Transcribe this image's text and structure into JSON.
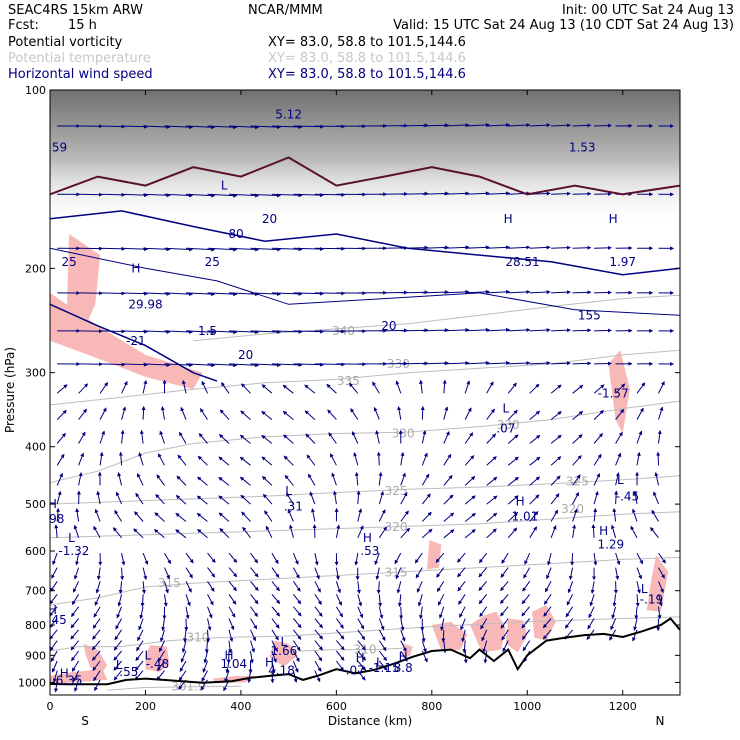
{
  "header": {
    "model": "SEAC4RS 15km ARW",
    "org": "NCAR/MMM",
    "init": "Init: 00 UTC Sat 24 Aug 13",
    "fcst_label": "Fcst:",
    "fcst_value": "15 h",
    "valid": "Valid: 15 UTC Sat 24 Aug 13 (10 CDT Sat 24 Aug 13)",
    "fields": [
      {
        "name": "Potential vorticity",
        "xy": "XY=  83.0, 58.8 to 101.5,144.6",
        "color": "#000000"
      },
      {
        "name": "Potential temperature",
        "xy": "XY=  83.0, 58.8 to 101.5,144.6",
        "color": "#c8c8c8"
      },
      {
        "name": "Horizontal wind speed",
        "xy": "XY=  83.0, 58.8 to 101.5,144.6",
        "color": "#000080"
      }
    ]
  },
  "chart_data": {
    "type": "cross-section",
    "xlabel": "Distance (km)",
    "ylabel": "Pressure (hPa)",
    "xlim": [
      0,
      1320
    ],
    "ylim": [
      1050,
      100
    ],
    "x_ticks": [
      0,
      200,
      400,
      600,
      800,
      1000,
      1200
    ],
    "y_ticks": [
      100,
      200,
      300,
      400,
      500,
      600,
      700,
      800,
      900,
      1000
    ],
    "x_end_labels": {
      "left": "S",
      "right": "N"
    },
    "terrain_pressure": [
      {
        "x": 0,
        "p": 1006
      },
      {
        "x": 40,
        "p": 1007
      },
      {
        "x": 120,
        "p": 1007
      },
      {
        "x": 160,
        "p": 990
      },
      {
        "x": 200,
        "p": 985
      },
      {
        "x": 260,
        "p": 993
      },
      {
        "x": 320,
        "p": 1001
      },
      {
        "x": 380,
        "p": 995
      },
      {
        "x": 420,
        "p": 982
      },
      {
        "x": 460,
        "p": 975
      },
      {
        "x": 500,
        "p": 968
      },
      {
        "x": 530,
        "p": 990
      },
      {
        "x": 560,
        "p": 975
      },
      {
        "x": 600,
        "p": 950
      },
      {
        "x": 640,
        "p": 965
      },
      {
        "x": 680,
        "p": 952
      },
      {
        "x": 720,
        "p": 930
      },
      {
        "x": 760,
        "p": 905
      },
      {
        "x": 800,
        "p": 885
      },
      {
        "x": 840,
        "p": 880
      },
      {
        "x": 880,
        "p": 910
      },
      {
        "x": 900,
        "p": 880
      },
      {
        "x": 930,
        "p": 920
      },
      {
        "x": 960,
        "p": 880
      },
      {
        "x": 980,
        "p": 950
      },
      {
        "x": 1000,
        "p": 900
      },
      {
        "x": 1040,
        "p": 850
      },
      {
        "x": 1080,
        "p": 840
      },
      {
        "x": 1120,
        "p": 832
      },
      {
        "x": 1160,
        "p": 828
      },
      {
        "x": 1200,
        "p": 838
      },
      {
        "x": 1240,
        "p": 820
      },
      {
        "x": 1280,
        "p": 800
      },
      {
        "x": 1300,
        "p": 780
      },
      {
        "x": 1320,
        "p": 815
      }
    ],
    "theta_contours": [
      {
        "label": "301.9",
        "lx": 290,
        "lp": 1015,
        "points": [
          [
            120,
            1030
          ],
          [
            200,
            1020
          ],
          [
            300,
            1017
          ],
          [
            400,
            1015
          ]
        ]
      },
      {
        "label": "310",
        "lx": 310,
        "lp": 840,
        "points": [
          [
            0,
            885
          ],
          [
            60,
            870
          ],
          [
            150,
            870
          ],
          [
            250,
            850
          ],
          [
            350,
            840
          ],
          [
            500,
            835
          ],
          [
            650,
            820
          ],
          [
            800,
            805
          ],
          [
            1000,
            790
          ],
          [
            1200,
            780
          ],
          [
            1320,
            775
          ]
        ]
      },
      {
        "label": "310",
        "lx": 660,
        "lp": 880,
        "points": [
          [
            520,
            885
          ],
          [
            600,
            880
          ],
          [
            680,
            880
          ],
          [
            740,
            875
          ]
        ]
      },
      {
        "label": "315",
        "lx": 250,
        "lp": 680,
        "points": [
          [
            0,
            740
          ],
          [
            100,
            720
          ],
          [
            200,
            690
          ],
          [
            300,
            680
          ],
          [
            450,
            670
          ],
          [
            600,
            660
          ],
          [
            750,
            650
          ],
          [
            900,
            640
          ],
          [
            1050,
            630
          ],
          [
            1200,
            620
          ],
          [
            1320,
            615
          ]
        ]
      },
      {
        "label": "315",
        "lx": 725,
        "lp": 652,
        "points": []
      },
      {
        "label": "320",
        "lx": 725,
        "lp": 547,
        "points": [
          [
            0,
            570
          ],
          [
            150,
            565
          ],
          [
            300,
            560
          ],
          [
            450,
            555
          ],
          [
            600,
            550
          ],
          [
            750,
            545
          ],
          [
            900,
            540
          ],
          [
            1050,
            530
          ],
          [
            1200,
            520
          ],
          [
            1320,
            515
          ]
        ]
      },
      {
        "label": "320",
        "lx": 1095,
        "lp": 510,
        "points": []
      },
      {
        "label": "325",
        "lx": 725,
        "lp": 475,
        "points": [
          [
            0,
            500
          ],
          [
            150,
            495
          ],
          [
            300,
            490
          ],
          [
            450,
            485
          ],
          [
            600,
            478
          ],
          [
            750,
            472
          ],
          [
            900,
            468
          ],
          [
            1050,
            462
          ],
          [
            1200,
            455
          ],
          [
            1320,
            448
          ]
        ]
      },
      {
        "label": "325",
        "lx": 1105,
        "lp": 458,
        "points": []
      },
      {
        "label": "330",
        "lx": 740,
        "lp": 380,
        "points": [
          [
            0,
            460
          ],
          [
            100,
            440
          ],
          [
            200,
            410
          ],
          [
            300,
            395
          ],
          [
            450,
            385
          ],
          [
            600,
            380
          ],
          [
            750,
            378
          ],
          [
            900,
            370
          ],
          [
            1050,
            360
          ],
          [
            1200,
            345
          ],
          [
            1320,
            335
          ]
        ]
      },
      {
        "label": "330",
        "lx": 960,
        "lp": 368,
        "points": []
      },
      {
        "label": "335",
        "lx": 625,
        "lp": 310,
        "points": [
          [
            0,
            340
          ],
          [
            150,
            330
          ],
          [
            300,
            320
          ],
          [
            450,
            312
          ],
          [
            600,
            308
          ],
          [
            750,
            300
          ],
          [
            900,
            295
          ],
          [
            1050,
            290
          ],
          [
            1200,
            280
          ],
          [
            1320,
            275
          ]
        ]
      },
      {
        "label": "330",
        "lx": 730,
        "lp": 290,
        "points": []
      },
      {
        "label": "340",
        "lx": 615,
        "lp": 255,
        "points": [
          [
            300,
            265
          ],
          [
            450,
            258
          ],
          [
            600,
            253
          ],
          [
            750,
            248
          ],
          [
            900,
            240
          ],
          [
            1050,
            232
          ],
          [
            1200,
            225
          ],
          [
            1320,
            222
          ]
        ]
      }
    ],
    "pv_labels": [
      {
        "text": "H",
        "x": 180,
        "p": 200,
        "color": "#000080"
      },
      {
        "text": "29.98",
        "x": 200,
        "p": 230,
        "color": "#000080"
      },
      {
        "text": "L",
        "x": 365,
        "p": 145,
        "color": "#000080"
      },
      {
        "text": "80",
        "x": 390,
        "p": 175,
        "color": "#000080"
      },
      {
        "text": "20",
        "x": 460,
        "p": 165,
        "color": "#000080"
      },
      {
        "text": "25",
        "x": 40,
        "p": 195,
        "color": "#000080"
      },
      {
        "text": "25",
        "x": 340,
        "p": 195,
        "color": "#000080"
      },
      {
        "text": "1.5",
        "x": 330,
        "p": 255,
        "color": "#000080"
      },
      {
        "text": "20",
        "x": 410,
        "p": 280,
        "color": "#000080"
      },
      {
        "text": "-21",
        "x": 180,
        "p": 265,
        "color": "#000080"
      },
      {
        "text": "59",
        "x": 20,
        "p": 125,
        "color": "#000080"
      },
      {
        "text": "5.12",
        "x": 500,
        "p": 110,
        "color": "#000080"
      },
      {
        "text": "20",
        "x": 710,
        "p": 250,
        "color": "#000080"
      },
      {
        "text": "H",
        "x": 960,
        "p": 165,
        "color": "#000080"
      },
      {
        "text": "28.51",
        "x": 990,
        "p": 195,
        "color": "#000080"
      },
      {
        "text": "1.53",
        "x": 1115,
        "p": 125,
        "color": "#000080"
      },
      {
        "text": "H",
        "x": 1180,
        "p": 165,
        "color": "#000080"
      },
      {
        "text": "1.97",
        "x": 1200,
        "p": 195,
        "color": "#000080"
      },
      {
        "text": "155",
        "x": 1130,
        "p": 240,
        "color": "#000080"
      },
      {
        "text": "-1.57",
        "x": 1180,
        "p": 325,
        "color": "#000080"
      },
      {
        "text": "L",
        "x": 955,
        "p": 345,
        "color": "#000080"
      },
      {
        "text": ".07",
        "x": 955,
        "p": 373,
        "color": "#000080"
      },
      {
        "text": "L",
        "x": 1195,
        "p": 455,
        "color": "#000080"
      },
      {
        "text": "-.45",
        "x": 1210,
        "p": 485,
        "color": "#000080"
      },
      {
        "text": "H",
        "x": 985,
        "p": 495,
        "color": "#000080"
      },
      {
        "text": "1.01",
        "x": 995,
        "p": 525,
        "color": "#000080"
      },
      {
        "text": "L",
        "x": 500,
        "p": 475,
        "color": "#000080"
      },
      {
        "text": ".31",
        "x": 510,
        "p": 505,
        "color": "#000080"
      },
      {
        "text": "H",
        "x": 5,
        "p": 500,
        "color": "#000080"
      },
      {
        "text": ".98",
        "x": 10,
        "p": 530,
        "color": "#000080"
      },
      {
        "text": "L",
        "x": 45,
        "p": 570,
        "color": "#000080"
      },
      {
        "text": "-1.32",
        "x": 50,
        "p": 600,
        "color": "#000080"
      },
      {
        "text": "H",
        "x": 665,
        "p": 570,
        "color": "#000080"
      },
      {
        "text": ".53",
        "x": 670,
        "p": 600,
        "color": "#000080"
      },
      {
        "text": "H",
        "x": 1160,
        "p": 555,
        "color": "#000080"
      },
      {
        "text": "1.29",
        "x": 1175,
        "p": 585,
        "color": "#000080"
      },
      {
        "text": "L",
        "x": 1245,
        "p": 695,
        "color": "#000080"
      },
      {
        "text": "-.19",
        "x": 1260,
        "p": 725,
        "color": "#000080"
      },
      {
        "text": "H",
        "x": 5,
        "p": 755,
        "color": "#000080"
      },
      {
        "text": ".45",
        "x": 15,
        "p": 785,
        "color": "#000080"
      },
      {
        "text": "L",
        "x": 490,
        "p": 855,
        "color": "#000080"
      },
      {
        "text": "1.66",
        "x": 490,
        "p": 885,
        "color": "#000080"
      },
      {
        "text": "L",
        "x": 205,
        "p": 900,
        "color": "#000080"
      },
      {
        "text": "-.48",
        "x": 225,
        "p": 930,
        "color": "#000080"
      },
      {
        "text": "H",
        "x": 375,
        "p": 900,
        "color": "#000080"
      },
      {
        "text": "1.04",
        "x": 385,
        "p": 930,
        "color": "#000080"
      },
      {
        "text": "H",
        "x": 460,
        "p": 925,
        "color": "#000080"
      },
      {
        "text": "4.18",
        "x": 485,
        "p": 955,
        "color": "#000080"
      },
      {
        "text": "L",
        "x": 145,
        "p": 935,
        "color": "#000080"
      },
      {
        "text": ".55",
        "x": 165,
        "p": 960,
        "color": "#000080"
      },
      {
        "text": "H",
        "x": 30,
        "p": 965,
        "color": "#000080"
      },
      {
        "text": "6.35",
        "x": 40,
        "p": 992,
        "color": "#000080"
      },
      {
        "text": "H",
        "x": 650,
        "p": 910,
        "color": "#000080"
      },
      {
        "text": "-.07",
        "x": 635,
        "p": 955,
        "color": "#000080"
      },
      {
        "text": "L",
        "x": 690,
        "p": 925,
        "color": "#000080"
      },
      {
        "text": "-1.15",
        "x": 700,
        "p": 945,
        "color": "#000080"
      },
      {
        "text": "H",
        "x": 740,
        "p": 905,
        "color": "#000080"
      },
      {
        "text": "8.8",
        "x": 740,
        "p": 945,
        "color": "#000080"
      }
    ],
    "pink_regions": [
      [
        [
          40,
          175
        ],
        [
          105,
          190
        ],
        [
          95,
          230
        ],
        [
          70,
          255
        ],
        [
          35,
          240
        ]
      ],
      [
        [
          0,
          220
        ],
        [
          100,
          250
        ],
        [
          200,
          280
        ],
        [
          320,
          300
        ],
        [
          300,
          320
        ],
        [
          200,
          305
        ],
        [
          80,
          280
        ],
        [
          0,
          265
        ]
      ],
      [
        [
          1170,
          290
        ],
        [
          1195,
          275
        ],
        [
          1215,
          320
        ],
        [
          1200,
          380
        ],
        [
          1185,
          360
        ]
      ],
      [
        [
          795,
          575
        ],
        [
          820,
          585
        ],
        [
          815,
          640
        ],
        [
          790,
          645
        ]
      ],
      [
        [
          1270,
          610
        ],
        [
          1295,
          650
        ],
        [
          1280,
          760
        ],
        [
          1250,
          755
        ],
        [
          1260,
          670
        ]
      ],
      [
        [
          70,
          860
        ],
        [
          100,
          880
        ],
        [
          120,
          935
        ],
        [
          110,
          960
        ],
        [
          85,
          945
        ],
        [
          75,
          900
        ]
      ],
      [
        [
          210,
          865
        ],
        [
          245,
          870
        ],
        [
          250,
          930
        ],
        [
          230,
          960
        ],
        [
          200,
          950
        ],
        [
          200,
          900
        ]
      ],
      [
        [
          470,
          850
        ],
        [
          500,
          860
        ],
        [
          520,
          900
        ],
        [
          490,
          940
        ],
        [
          460,
          905
        ]
      ],
      [
        [
          740,
          860
        ],
        [
          760,
          870
        ],
        [
          755,
          900
        ],
        [
          740,
          910
        ]
      ],
      [
        [
          800,
          800
        ],
        [
          840,
          790
        ],
        [
          875,
          830
        ],
        [
          860,
          880
        ],
        [
          820,
          885
        ]
      ],
      [
        [
          880,
          800
        ],
        [
          910,
          770
        ],
        [
          935,
          760
        ],
        [
          955,
          810
        ],
        [
          945,
          880
        ],
        [
          905,
          890
        ]
      ],
      [
        [
          960,
          780
        ],
        [
          990,
          785
        ],
        [
          1000,
          830
        ],
        [
          980,
          890
        ],
        [
          955,
          860
        ]
      ],
      [
        [
          1010,
          760
        ],
        [
          1040,
          740
        ],
        [
          1060,
          790
        ],
        [
          1040,
          850
        ],
        [
          1015,
          840
        ]
      ],
      [
        [
          0,
          975
        ],
        [
          50,
          960
        ],
        [
          110,
          950
        ],
        [
          120,
          990
        ],
        [
          50,
          1000
        ],
        [
          0,
          1005
        ]
      ],
      [
        [
          340,
          985
        ],
        [
          390,
          975
        ],
        [
          430,
          975
        ],
        [
          410,
          1000
        ],
        [
          350,
          1003
        ]
      ]
    ],
    "top_band_shade_p": [
      100,
      170
    ]
  }
}
